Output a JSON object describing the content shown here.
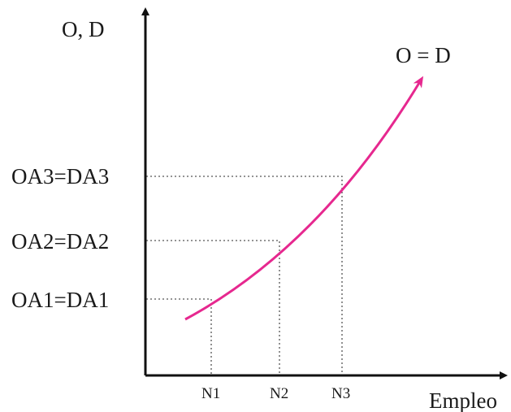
{
  "diagram": {
    "y_axis_label": "O, D",
    "x_axis_label": "Empleo",
    "curve_label": "O = D",
    "curve_color": "#e6288f",
    "axis_color": "#111111",
    "guide_color": "#555555",
    "levels": [
      {
        "y_label": "OA1=DA1",
        "x_label": "N1"
      },
      {
        "y_label": "OA2=DA2",
        "x_label": "N2"
      },
      {
        "y_label": "OA3=DA3",
        "x_label": "N3"
      }
    ]
  }
}
